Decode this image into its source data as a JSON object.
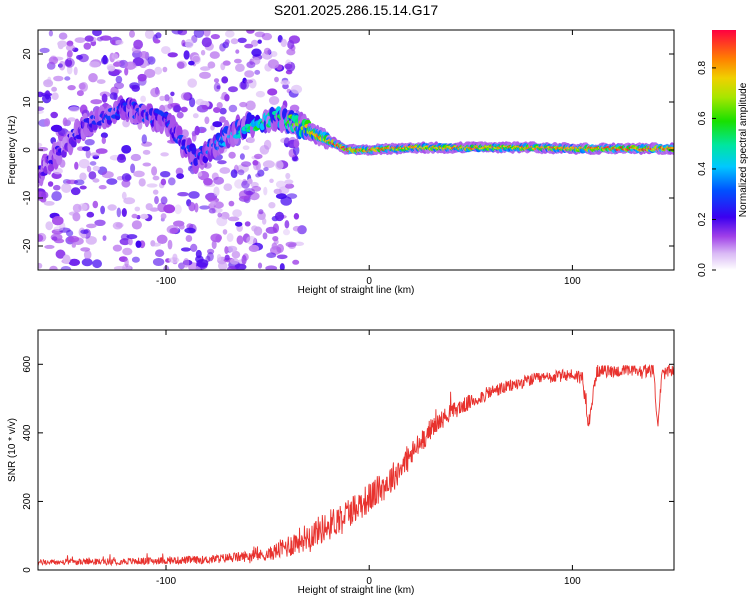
{
  "title": "S201.2025.286.15.14.G17",
  "chart_data": [
    {
      "type": "heatmap",
      "xlabel": "Height of straight line (km)",
      "ylabel": "Frequency (Hz)",
      "xlim": [
        -163,
        150
      ],
      "ylim": [
        -25,
        25
      ],
      "xticks": [
        -100,
        0,
        100
      ],
      "xtick_labels": [
        "-100",
        "0",
        "100"
      ],
      "yticks": [
        -20,
        -10,
        0,
        10,
        20
      ],
      "ytick_labels": [
        "-20",
        "-10",
        "0",
        "10",
        "20"
      ],
      "colorbar": {
        "label": "Normalized spectral amplitude",
        "range": [
          0,
          0.95
        ],
        "ticks": [
          0.0,
          0.2,
          0.4,
          0.6,
          0.8
        ],
        "tick_labels": [
          "0.0",
          "0.2",
          "0.4",
          "0.6",
          "0.8"
        ]
      },
      "ridge": {
        "description_points_x": [
          -163,
          -140,
          -120,
          -100,
          -85,
          -70,
          -55,
          -45,
          -35,
          -25,
          -15,
          -10,
          0,
          20,
          40,
          60,
          80,
          100,
          120,
          150
        ],
        "description_points_y": [
          -5,
          5,
          9,
          6,
          -2,
          3,
          6,
          7,
          5,
          3,
          1,
          0,
          0,
          0.5,
          0.5,
          0.5,
          0.5,
          0.3,
          0.3,
          0.3
        ],
        "peak_amplitude": [
          0.2,
          0.25,
          0.3,
          0.3,
          0.3,
          0.4,
          0.55,
          0.55,
          0.7,
          0.85,
          0.9,
          0.9,
          0.9,
          0.85,
          0.85,
          0.85,
          0.85,
          0.85,
          0.9,
          0.9
        ]
      }
    },
    {
      "type": "line",
      "xlabel": "Height of straight line (km)",
      "ylabel": "SNR (10 * v/v)",
      "xlim": [
        -163,
        150
      ],
      "ylim": [
        0,
        700
      ],
      "xticks": [
        -100,
        0,
        100
      ],
      "xtick_labels": [
        "-100",
        "0",
        "100"
      ],
      "yticks": [
        0,
        200,
        400,
        600
      ],
      "ytick_labels": [
        "0",
        "200",
        "400",
        "600"
      ],
      "series": [
        {
          "name": "SNR",
          "color": "#e8322e",
          "trend_x": [
            -163,
            -120,
            -80,
            -50,
            -40,
            -30,
            -20,
            -10,
            0,
            10,
            20,
            30,
            40,
            60,
            80,
            100,
            105,
            108,
            112,
            140,
            142,
            144,
            150
          ],
          "trend_y": [
            22,
            25,
            30,
            45,
            70,
            100,
            130,
            170,
            210,
            260,
            330,
            410,
            460,
            520,
            555,
            570,
            560,
            430,
            580,
            580,
            420,
            570,
            585
          ],
          "noise_amplitude": [
            8,
            10,
            12,
            18,
            35,
            40,
            45,
            45,
            45,
            45,
            40,
            30,
            25,
            20,
            18,
            18,
            25,
            25,
            18,
            18,
            15,
            18,
            18
          ]
        }
      ]
    }
  ]
}
